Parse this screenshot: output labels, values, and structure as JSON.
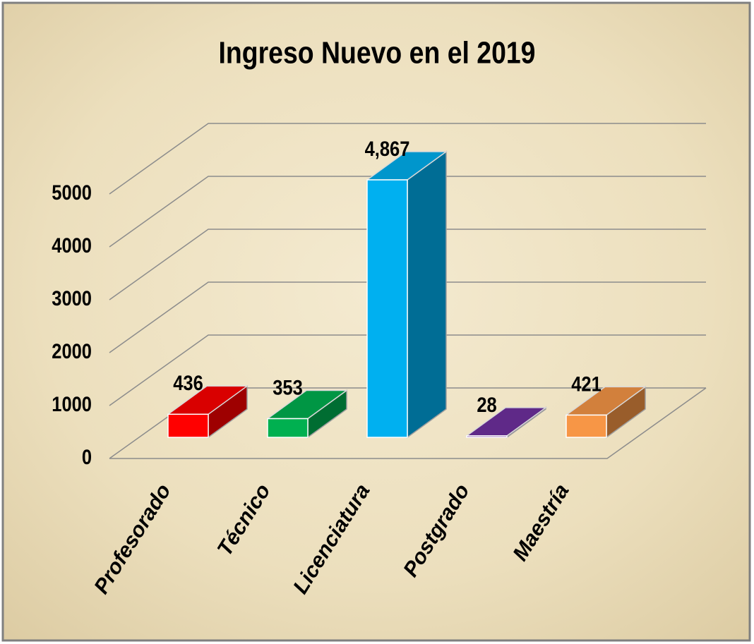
{
  "chart_data": {
    "type": "bar3d",
    "title": "Ingreso Nuevo en el 2019",
    "categories": [
      "Profesorado",
      "Técnico",
      "Licenciatura",
      "Postgrado",
      "Maestría"
    ],
    "values": [
      436,
      353,
      4867,
      28,
      421
    ],
    "value_labels": [
      "436",
      "353",
      "4,867",
      "28",
      "421"
    ],
    "colors": [
      "#ff0000",
      "#00b050",
      "#00b0f0",
      "#7030a0",
      "#f79646"
    ],
    "ylim": [
      0,
      5000
    ],
    "yticks": [
      0,
      1000,
      2000,
      3000,
      4000,
      5000
    ],
    "grid": true
  }
}
